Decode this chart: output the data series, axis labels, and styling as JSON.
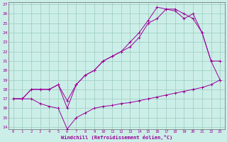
{
  "xlabel": "Windchill (Refroidissement éolien,°C)",
  "background_color": "#cceee8",
  "grid_color": "#99ccbb",
  "line_color": "#990099",
  "spine_color": "#666666",
  "xlim": [
    -0.5,
    23.5
  ],
  "ylim": [
    13.8,
    27.2
  ],
  "x_ticks": [
    0,
    1,
    2,
    3,
    4,
    5,
    6,
    7,
    8,
    9,
    10,
    11,
    12,
    13,
    14,
    15,
    16,
    17,
    18,
    19,
    20,
    21,
    22,
    23
  ],
  "y_ticks": [
    14,
    15,
    16,
    17,
    18,
    19,
    20,
    21,
    22,
    23,
    24,
    25,
    26,
    27
  ],
  "line1_x": [
    0,
    1,
    2,
    3,
    4,
    5,
    6,
    7,
    8,
    9,
    10,
    11,
    12,
    13,
    14,
    15,
    16,
    17,
    18,
    19,
    20,
    21,
    22,
    23
  ],
  "line1_y": [
    17,
    17,
    17,
    16.5,
    16.2,
    16.0,
    13.8,
    15.0,
    15.5,
    16.0,
    16.2,
    16.3,
    16.5,
    16.6,
    16.8,
    17.0,
    17.2,
    17.4,
    17.6,
    17.8,
    18.0,
    18.2,
    18.5,
    19.0
  ],
  "line2_x": [
    0,
    1,
    2,
    3,
    4,
    5,
    6,
    7,
    8,
    9,
    10,
    11,
    12,
    13,
    14,
    15,
    16,
    17,
    18,
    19,
    20,
    21,
    22,
    23
  ],
  "line2_y": [
    17,
    17,
    18,
    18,
    18,
    18.5,
    16.8,
    18.5,
    19.5,
    20.0,
    21.0,
    21.5,
    22.0,
    22.5,
    23.5,
    25.0,
    25.5,
    26.5,
    26.3,
    25.5,
    26.0,
    24.0,
    21.0,
    21.0
  ],
  "line3_x": [
    0,
    1,
    2,
    3,
    4,
    5,
    6,
    7,
    8,
    9,
    10,
    11,
    12,
    13,
    14,
    15,
    16,
    17,
    18,
    19,
    20,
    21,
    22,
    23
  ],
  "line3_y": [
    17,
    17,
    18,
    18,
    18,
    18.5,
    16.0,
    18.5,
    19.5,
    20.0,
    21.0,
    21.5,
    22.0,
    23.0,
    24.0,
    25.3,
    26.7,
    26.5,
    26.5,
    26.0,
    25.5,
    24.0,
    21.0,
    19.0
  ]
}
